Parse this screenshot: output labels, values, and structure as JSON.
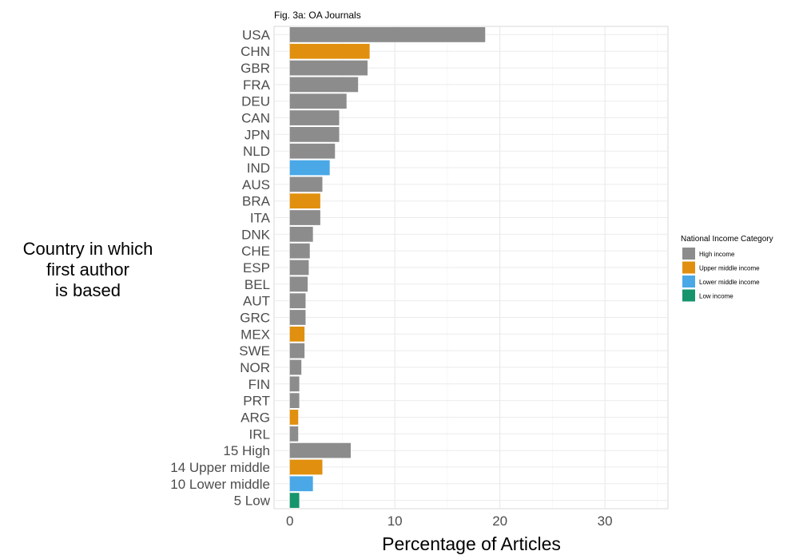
{
  "chart_data": {
    "type": "bar",
    "orientation": "horizontal",
    "title": "Fig. 3a: OA Journals",
    "xlabel": "Percentage of Articles",
    "ylabel_lines": [
      "Country in which",
      "first author",
      "is based"
    ],
    "xlim": [
      -1.5,
      36
    ],
    "xticks": [
      0,
      10,
      20,
      30
    ],
    "grid": true,
    "legend": {
      "title": "National Income Category",
      "placement": "right",
      "entries": [
        {
          "key": "high",
          "label": "High income",
          "color": "#8c8c8c"
        },
        {
          "key": "upper",
          "label": "Upper middle income",
          "color": "#e0900e"
        },
        {
          "key": "lower",
          "label": "Lower middle income",
          "color": "#4aa8e6"
        },
        {
          "key": "low",
          "label": "Low income",
          "color": "#16946b"
        }
      ]
    },
    "categories": [
      "USA",
      "CHN",
      "GBR",
      "FRA",
      "DEU",
      "CAN",
      "JPN",
      "NLD",
      "IND",
      "AUS",
      "BRA",
      "ITA",
      "DNK",
      "CHE",
      "ESP",
      "BEL",
      "AUT",
      "GRC",
      "MEX",
      "SWE",
      "NOR",
      "FIN",
      "PRT",
      "ARG",
      "IRL",
      "15 High",
      "14 Upper middle",
      "10 Lower middle",
      "5 Low"
    ],
    "values": [
      18.6,
      7.6,
      7.4,
      6.5,
      5.4,
      4.7,
      4.7,
      4.3,
      3.8,
      3.1,
      2.9,
      2.9,
      2.2,
      1.9,
      1.8,
      1.7,
      1.5,
      1.5,
      1.4,
      1.4,
      1.1,
      0.9,
      0.9,
      0.8,
      0.8,
      5.8,
      3.1,
      2.2,
      0.9
    ],
    "income": [
      "high",
      "upper",
      "high",
      "high",
      "high",
      "high",
      "high",
      "high",
      "lower",
      "high",
      "upper",
      "high",
      "high",
      "high",
      "high",
      "high",
      "high",
      "high",
      "upper",
      "high",
      "high",
      "high",
      "high",
      "upper",
      "high",
      "high",
      "upper",
      "lower",
      "low"
    ]
  }
}
